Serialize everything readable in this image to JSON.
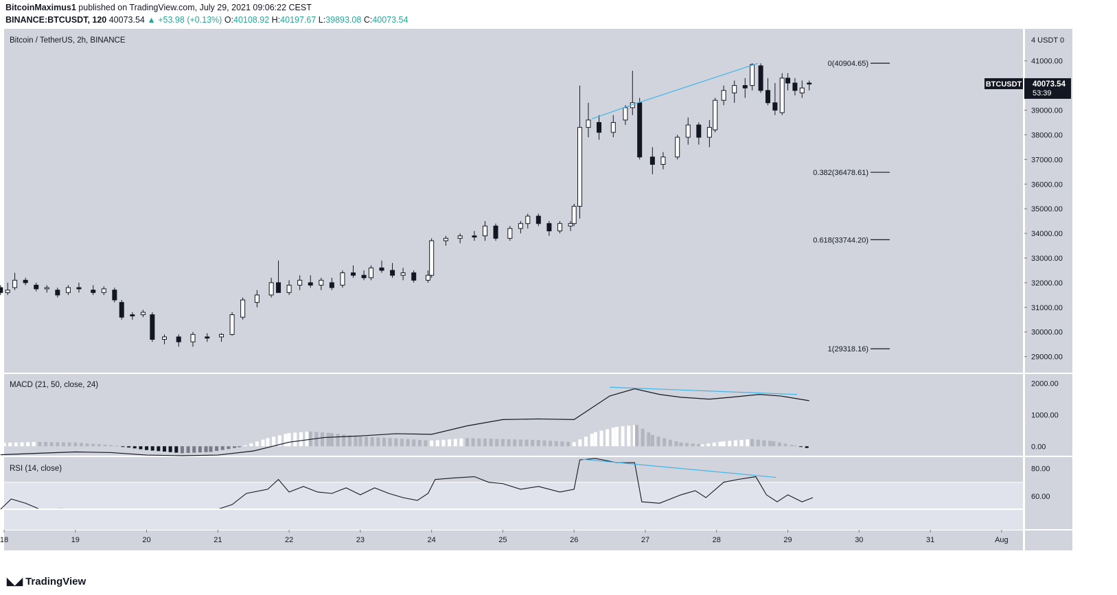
{
  "header": {
    "author": "BitcoinMaximus1",
    "published": "published on TradingView.com, July 29, 2021 09:06:22 CEST",
    "symbol": "BINANCE:BTCUSDT, 120",
    "last": "40073.54",
    "change": "▲ +53.98 (+0.13%)",
    "o_label": "O:",
    "o": "40108.92",
    "h_label": "H:",
    "h": "40197.67",
    "l_label": "L:",
    "l": "39893.08",
    "c_label": "C:",
    "c": "40073.54"
  },
  "footer": {
    "brand": "TradingView",
    "logo_icon": "tradingview-logo-icon"
  },
  "chart_data": {
    "type": "candlestick",
    "title": "Bitcoin / TetherUS, 2h, BINANCE",
    "price_axis": {
      "unit_label": "4 USDT 0",
      "ticks": [
        29000,
        30000,
        31000,
        32000,
        33000,
        34000,
        35000,
        36000,
        37000,
        38000,
        39000,
        40000,
        41000
      ],
      "tick_labels": [
        "29000.00",
        "30000.00",
        "31000.00",
        "32000.00",
        "33000.00",
        "34000.00",
        "35000.00",
        "36000.00",
        "37000.00",
        "38000.00",
        "39000.00",
        "40000.00",
        "41000.00"
      ],
      "range": [
        28350,
        42300
      ]
    },
    "time_axis": {
      "labels": [
        "18",
        "19",
        "20",
        "21",
        "22",
        "23",
        "24",
        "25",
        "26",
        "27",
        "28",
        "29",
        "30",
        "31",
        "Aug"
      ],
      "start": 18,
      "end": 32.3
    },
    "last_price": {
      "label": "BTCUSDT",
      "value": "40073.54",
      "countdown": "53:39"
    },
    "fib_levels": [
      {
        "label": "0(40904.65)",
        "value": 40904.65
      },
      {
        "label": "0.382(36478.61)",
        "value": 36478.61
      },
      {
        "label": "0.618(33744.20)",
        "value": 33744.2
      },
      {
        "label": "1(29318.16)",
        "value": 29318.16
      }
    ],
    "trendline": {
      "color": "#3fb6e8",
      "points": [
        [
          26.25,
          38650
        ],
        [
          26.9,
          39300
        ],
        [
          28.58,
          40900
        ]
      ]
    },
    "ohlc_sampled": [
      [
        "17.95",
        31800,
        31900,
        31500,
        31600
      ],
      [
        "18.05",
        31600,
        32000,
        31500,
        31700
      ],
      [
        "18.15",
        31800,
        32400,
        31700,
        32100
      ],
      [
        "18.30",
        32100,
        32200,
        31900,
        32000
      ],
      [
        "18.45",
        31900,
        32000,
        31650,
        31750
      ],
      [
        "18.60",
        31750,
        31900,
        31600,
        31800
      ],
      [
        "18.75",
        31700,
        31800,
        31400,
        31500
      ],
      [
        "18.90",
        31600,
        31900,
        31500,
        31800
      ],
      [
        "19.05",
        31800,
        32000,
        31600,
        31750
      ],
      [
        "19.25",
        31700,
        31900,
        31500,
        31600
      ],
      [
        "19.40",
        31600,
        31850,
        31500,
        31750
      ],
      [
        "19.55",
        31700,
        31800,
        31200,
        31300
      ],
      [
        "19.65",
        31200,
        31300,
        30500,
        30600
      ],
      [
        "19.80",
        30700,
        30800,
        30500,
        30650
      ],
      [
        "19.95",
        30700,
        30900,
        30600,
        30800
      ],
      [
        "20.08",
        30700,
        30800,
        29600,
        29700
      ],
      [
        "20.25",
        29700,
        29900,
        29500,
        29800
      ],
      [
        "20.45",
        29800,
        29900,
        29400,
        29600
      ],
      [
        "20.65",
        29600,
        30000,
        29400,
        29900
      ],
      [
        "20.85",
        29800,
        29950,
        29600,
        29750
      ],
      [
        "21.05",
        29800,
        29950,
        29600,
        29900
      ],
      [
        "21.20",
        29900,
        30800,
        29850,
        30700
      ],
      [
        "21.35",
        30600,
        31400,
        30500,
        31300
      ],
      [
        "21.55",
        31200,
        31700,
        31000,
        31500
      ],
      [
        "21.75",
        31500,
        32200,
        31400,
        32000
      ],
      [
        "21.85",
        32000,
        32900,
        31600,
        31600
      ],
      [
        "22.00",
        31600,
        32100,
        31500,
        31900
      ],
      [
        "22.15",
        31900,
        32300,
        31700,
        32100
      ],
      [
        "22.30",
        32000,
        32300,
        31800,
        31900
      ],
      [
        "22.45",
        31900,
        32200,
        31700,
        32100
      ],
      [
        "22.60",
        32000,
        32200,
        31700,
        31800
      ],
      [
        "22.75",
        31900,
        32500,
        31800,
        32400
      ],
      [
        "22.90",
        32400,
        32700,
        32200,
        32300
      ],
      [
        "23.05",
        32300,
        32500,
        32100,
        32200
      ],
      [
        "23.15",
        32200,
        32700,
        32100,
        32600
      ],
      [
        "23.30",
        32600,
        32900,
        32400,
        32500
      ],
      [
        "23.45",
        32500,
        32800,
        32200,
        32300
      ],
      [
        "23.60",
        32300,
        32600,
        32100,
        32400
      ],
      [
        "23.75",
        32400,
        32500,
        32000,
        32100
      ],
      [
        "23.95",
        32100,
        32500,
        32000,
        32300
      ],
      [
        "24.00",
        32300,
        33800,
        32200,
        33700
      ],
      [
        "24.20",
        33700,
        33900,
        33500,
        33800
      ],
      [
        "24.40",
        33800,
        34000,
        33600,
        33900
      ],
      [
        "24.60",
        33900,
        34100,
        33700,
        33850
      ],
      [
        "24.75",
        33900,
        34500,
        33700,
        34300
      ],
      [
        "24.90",
        34300,
        34400,
        33700,
        33800
      ],
      [
        "25.10",
        33800,
        34300,
        33700,
        34200
      ],
      [
        "25.25",
        34200,
        34500,
        34000,
        34400
      ],
      [
        "25.35",
        34400,
        34800,
        34200,
        34700
      ],
      [
        "25.50",
        34700,
        34800,
        34300,
        34400
      ],
      [
        "25.65",
        34400,
        34500,
        33900,
        34100
      ],
      [
        "25.80",
        34100,
        34500,
        34000,
        34400
      ],
      [
        "25.95",
        34300,
        34500,
        34100,
        34400
      ],
      [
        "26.00",
        34400,
        35200,
        34300,
        35100
      ],
      [
        "26.08",
        35100,
        40000,
        34600,
        38300
      ],
      [
        "26.20",
        38300,
        39300,
        37900,
        38600
      ],
      [
        "26.35",
        38500,
        38800,
        37800,
        38100
      ],
      [
        "26.55",
        38100,
        38800,
        37900,
        38500
      ],
      [
        "26.72",
        38600,
        39200,
        38400,
        39100
      ],
      [
        "26.82",
        39100,
        40600,
        38800,
        39300
      ],
      [
        "26.92",
        39300,
        39500,
        37000,
        37100
      ],
      [
        "27.10",
        37100,
        37500,
        36400,
        36800
      ],
      [
        "27.25",
        36800,
        37300,
        36600,
        37100
      ],
      [
        "27.45",
        37100,
        38000,
        37000,
        37900
      ],
      [
        "27.60",
        37900,
        38700,
        37600,
        38400
      ],
      [
        "27.75",
        38400,
        38500,
        37600,
        37900
      ],
      [
        "27.90",
        37900,
        38600,
        37500,
        38300
      ],
      [
        "27.98",
        38200,
        39500,
        38100,
        39400
      ],
      [
        "28.10",
        39400,
        40000,
        39200,
        39800
      ],
      [
        "28.25",
        39700,
        40200,
        39300,
        40000
      ],
      [
        "28.40",
        40000,
        40300,
        39500,
        39900
      ],
      [
        "28.50",
        40000,
        40900,
        39800,
        40850
      ],
      [
        "28.62",
        40800,
        40900,
        39700,
        39800
      ],
      [
        "28.72",
        39800,
        40300,
        39200,
        39300
      ],
      [
        "28.82",
        39300,
        40100,
        38800,
        39000
      ],
      [
        "28.92",
        38900,
        40500,
        38800,
        40300
      ],
      [
        "29.00",
        40300,
        40500,
        39800,
        40100
      ],
      [
        "29.10",
        40100,
        40300,
        39600,
        39800
      ],
      [
        "29.20",
        39700,
        40200,
        39500,
        39900
      ],
      [
        "29.30",
        40100,
        40200,
        39800,
        40073
      ]
    ],
    "macd": {
      "label": "MACD (21, 50, close, 24)",
      "ticks": [
        0,
        1000,
        2000
      ],
      "tick_labels": [
        "0.00",
        "1000.00",
        "2000.00"
      ],
      "range": [
        -300,
        2300
      ],
      "trendline": {
        "color": "#3fb6e8",
        "points": [
          [
            26.5,
            1880
          ],
          [
            29.13,
            1650
          ]
        ]
      },
      "line": [
        [
          17.95,
          -270
        ],
        [
          18.5,
          -220
        ],
        [
          19,
          -180
        ],
        [
          19.5,
          -200
        ],
        [
          20,
          -280
        ],
        [
          20.5,
          -330
        ],
        [
          21,
          -280
        ],
        [
          21.5,
          -150
        ],
        [
          22,
          130
        ],
        [
          22.5,
          280
        ],
        [
          23,
          330
        ],
        [
          23.5,
          400
        ],
        [
          24,
          380
        ],
        [
          24.5,
          650
        ],
        [
          25,
          850
        ],
        [
          25.5,
          870
        ],
        [
          26,
          850
        ],
        [
          26.2,
          1150
        ],
        [
          26.5,
          1600
        ],
        [
          26.85,
          1830
        ],
        [
          27.2,
          1650
        ],
        [
          27.5,
          1560
        ],
        [
          27.9,
          1500
        ],
        [
          28.2,
          1560
        ],
        [
          28.6,
          1650
        ],
        [
          28.9,
          1600
        ],
        [
          29.3,
          1450
        ]
      ],
      "histogram_sampled": [
        [
          18,
          110
        ],
        [
          18.5,
          140
        ],
        [
          19,
          120
        ],
        [
          19.5,
          40
        ],
        [
          20,
          -120
        ],
        [
          20.5,
          -220
        ],
        [
          20.9,
          -180
        ],
        [
          21.3,
          -30
        ],
        [
          21.7,
          260
        ],
        [
          22,
          420
        ],
        [
          22.3,
          470
        ],
        [
          22.6,
          420
        ],
        [
          23,
          310
        ],
        [
          23.5,
          250
        ],
        [
          24,
          180
        ],
        [
          24.5,
          260
        ],
        [
          25,
          230
        ],
        [
          25.5,
          200
        ],
        [
          26,
          130
        ],
        [
          26.3,
          450
        ],
        [
          26.6,
          620
        ],
        [
          26.88,
          680
        ],
        [
          27.1,
          360
        ],
        [
          27.5,
          120
        ],
        [
          27.8,
          60
        ],
        [
          28.1,
          160
        ],
        [
          28.5,
          230
        ],
        [
          28.8,
          160
        ],
        [
          29.1,
          20
        ],
        [
          29.3,
          -70
        ]
      ]
    },
    "rsi": {
      "label": "RSI (14, close)",
      "ticks": [
        60,
        80
      ],
      "tick_labels": [
        "60.00",
        "80.00"
      ],
      "range": [
        36,
        88
      ],
      "band": [
        30,
        70
      ],
      "trendline": {
        "color": "#3fb6e8",
        "points": [
          [
            26.1,
            86.5
          ],
          [
            28.83,
            73.5
          ]
        ]
      },
      "line": [
        [
          17.95,
          47
        ],
        [
          18.1,
          58
        ],
        [
          18.3,
          55
        ],
        [
          18.5,
          49
        ],
        [
          18.8,
          51
        ],
        [
          19,
          48
        ],
        [
          19.4,
          49
        ],
        [
          19.7,
          43
        ],
        [
          20,
          42
        ],
        [
          20.3,
          36
        ],
        [
          20.7,
          38
        ],
        [
          21,
          45
        ],
        [
          21.2,
          54
        ],
        [
          21.4,
          62
        ],
        [
          21.7,
          65
        ],
        [
          21.85,
          72
        ],
        [
          22,
          63
        ],
        [
          22.2,
          67
        ],
        [
          22.4,
          63
        ],
        [
          22.6,
          62
        ],
        [
          22.8,
          66
        ],
        [
          23,
          61
        ],
        [
          23.2,
          66
        ],
        [
          23.4,
          62
        ],
        [
          23.6,
          59
        ],
        [
          23.8,
          57
        ],
        [
          23.95,
          62
        ],
        [
          24.05,
          72
        ],
        [
          24.3,
          73
        ],
        [
          24.6,
          74
        ],
        [
          24.8,
          70
        ],
        [
          25.0,
          69
        ],
        [
          25.25,
          65
        ],
        [
          25.5,
          67
        ],
        [
          25.8,
          63
        ],
        [
          26.0,
          65
        ],
        [
          26.08,
          86
        ],
        [
          26.3,
          87
        ],
        [
          26.6,
          84
        ],
        [
          26.85,
          84
        ],
        [
          26.95,
          56
        ],
        [
          27.2,
          55
        ],
        [
          27.5,
          61
        ],
        [
          27.7,
          64
        ],
        [
          27.85,
          59
        ],
        [
          28.1,
          70
        ],
        [
          28.3,
          72
        ],
        [
          28.55,
          74
        ],
        [
          28.7,
          61
        ],
        [
          28.85,
          56
        ],
        [
          29.0,
          61
        ],
        [
          29.2,
          56
        ],
        [
          29.35,
          59
        ]
      ]
    }
  }
}
